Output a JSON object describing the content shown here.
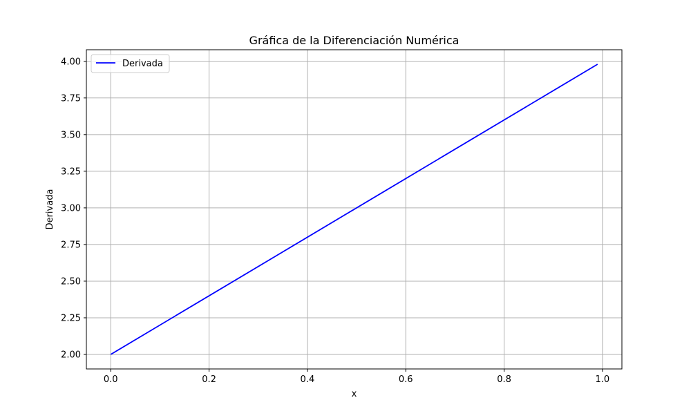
{
  "chart_data": {
    "type": "line",
    "title": "Gráfica de la Diferenciación Numérica",
    "xlabel": "x",
    "ylabel": "Derivada",
    "xlim": [
      -0.0495,
      1.0395
    ],
    "ylim": [
      1.901,
      4.079
    ],
    "xticks": [
      0.0,
      0.2,
      0.4,
      0.6,
      0.8,
      1.0
    ],
    "xtick_labels": [
      "0.0",
      "0.2",
      "0.4",
      "0.6",
      "0.8",
      "1.0"
    ],
    "yticks": [
      2.0,
      2.25,
      2.5,
      2.75,
      3.0,
      3.25,
      3.5,
      3.75,
      4.0
    ],
    "ytick_labels": [
      "2.00",
      "2.25",
      "2.50",
      "2.75",
      "3.00",
      "3.25",
      "3.50",
      "3.75",
      "4.00"
    ],
    "grid": true,
    "legend_position": "upper-left",
    "series": [
      {
        "name": "Derivada",
        "color": "#0000ff",
        "x": [
          0.0,
          0.99
        ],
        "y": [
          2.0,
          3.98
        ]
      }
    ]
  }
}
